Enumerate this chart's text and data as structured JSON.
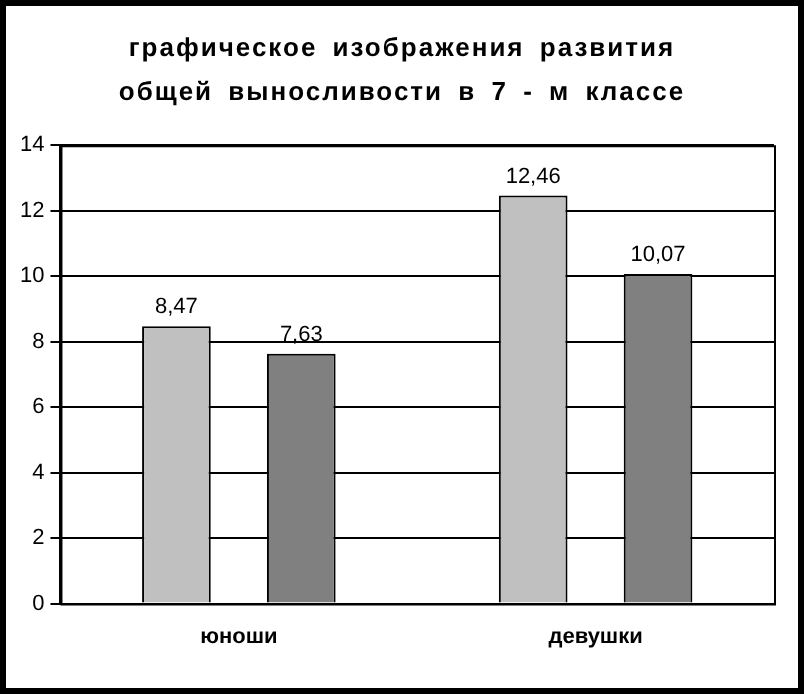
{
  "chart_data": {
    "type": "bar",
    "title": "графическое изображения развития общей выносливости в 7 - м классе",
    "categories": [
      "юноши",
      "девушки"
    ],
    "series": [
      {
        "color": "#c0c0c0",
        "values": [
          8.47,
          12.46
        ]
      },
      {
        "color": "#808080",
        "values": [
          7.63,
          10.07
        ]
      }
    ],
    "ylim": [
      0,
      14
    ],
    "yticks": [
      0,
      2,
      4,
      6,
      8,
      10,
      12,
      14
    ],
    "grid": "y",
    "legend": false,
    "value_labels": [
      [
        "8,47",
        "12,46"
      ],
      [
        "7,63",
        "10,07"
      ]
    ]
  }
}
